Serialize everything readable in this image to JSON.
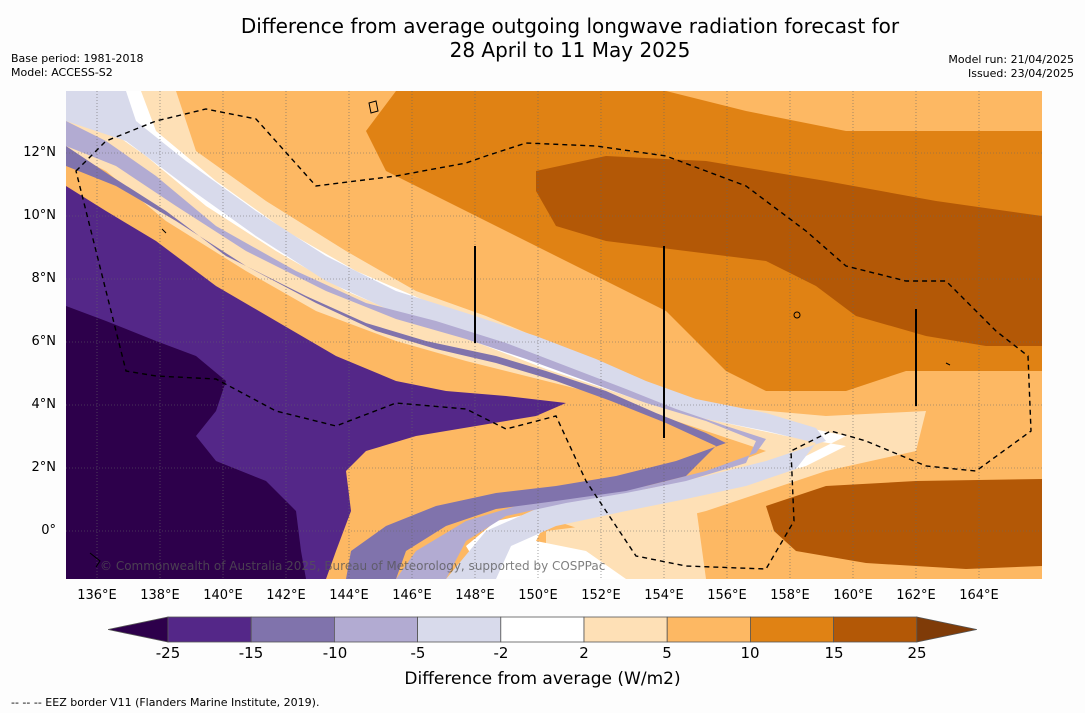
{
  "header": {
    "title_line1": "Difference from average outgoing longwave radiation forecast for",
    "title_line2": "28 April to 11 May 2025",
    "base_period": "Base period: 1981-2018",
    "model": "Model: ACCESS-S2",
    "model_run": "Model run: 21/04/2025",
    "issued": "Issued: 23/04/2025"
  },
  "map": {
    "x_labels": [
      "136°E",
      "138°E",
      "140°E",
      "142°E",
      "144°E",
      "146°E",
      "148°E",
      "150°E",
      "152°E",
      "154°E",
      "156°E",
      "158°E",
      "160°E",
      "162°E",
      "164°E"
    ],
    "y_labels": [
      "12°N",
      "10°N",
      "8°N",
      "6°N",
      "4°N",
      "2°N",
      "0°"
    ],
    "credit": "© Commonwealth of Australia 2025, Bureau of Meteorology, supported by COSPPac"
  },
  "colorbar": {
    "title": "Difference from average (W/m2)",
    "ticks": [
      "-25",
      "-15",
      "-10",
      "-5",
      "-2",
      "2",
      "5",
      "10",
      "15",
      "25"
    ],
    "colors": [
      "#2d004b",
      "#542788",
      "#8073ac",
      "#b2abd2",
      "#d8daeb",
      "#ffffff",
      "#fee0b6",
      "#fdb863",
      "#e08214",
      "#b35806",
      "#7f3b08"
    ]
  },
  "footnote": "--  --  -- EEZ border V11 (Flanders Marine Institute, 2019)."
}
